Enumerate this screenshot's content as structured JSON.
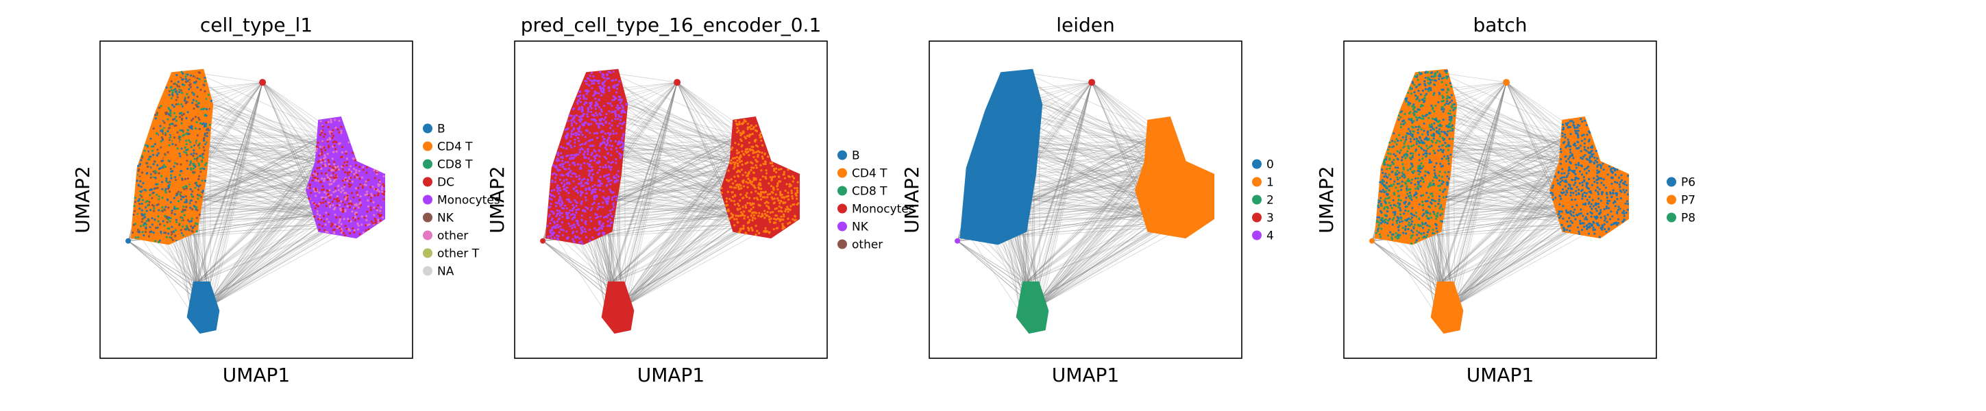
{
  "chart_data": [
    {
      "type": "scatter",
      "title": "cell_type_l1",
      "xlabel": "UMAP1",
      "ylabel": "UMAP2",
      "grid": false,
      "legend": "right",
      "legend_entries": [
        {
          "label": "B",
          "color": "#1f77b4"
        },
        {
          "label": "CD4 T",
          "color": "#ff7f0e"
        },
        {
          "label": "CD8 T",
          "color": "#279e68"
        },
        {
          "label": "DC",
          "color": "#d62728"
        },
        {
          "label": "Monocytes",
          "color": "#aa40fc"
        },
        {
          "label": "NK",
          "color": "#8c564b"
        },
        {
          "label": "other",
          "color": "#e377c2"
        },
        {
          "label": "other T",
          "color": "#b5bd61"
        },
        {
          "label": "NA",
          "color": "#d3d3d3"
        }
      ],
      "clusters": [
        {
          "label": "CD4 T",
          "mix": [
            "#ff7f0e",
            "#279e68",
            "#8c564b",
            "#1f77b4"
          ],
          "region": "left"
        },
        {
          "label": "Monocytes",
          "mix": [
            "#aa40fc",
            "#e377c2",
            "#d62728"
          ],
          "region": "right"
        },
        {
          "label": "B",
          "mix": [
            "#1f77b4"
          ],
          "region": "bottom"
        },
        {
          "label": "DC",
          "mix": [
            "#d62728"
          ],
          "region": "top"
        }
      ]
    },
    {
      "type": "scatter",
      "title": "pred_cell_type_16_encoder_0.1",
      "xlabel": "UMAP1",
      "ylabel": "UMAP2",
      "grid": false,
      "legend": "right",
      "legend_entries": [
        {
          "label": "B",
          "color": "#1f77b4"
        },
        {
          "label": "CD4 T",
          "color": "#ff7f0e"
        },
        {
          "label": "CD8 T",
          "color": "#279e68"
        },
        {
          "label": "Monocytes",
          "color": "#d62728"
        },
        {
          "label": "NK",
          "color": "#aa40fc"
        },
        {
          "label": "other",
          "color": "#8c564b"
        }
      ],
      "clusters": [
        {
          "label": "Monocytes",
          "mix": [
            "#d62728"
          ],
          "region": "all"
        }
      ]
    },
    {
      "type": "scatter",
      "title": "leiden",
      "xlabel": "UMAP1",
      "ylabel": "UMAP2",
      "grid": false,
      "legend": "right",
      "legend_entries": [
        {
          "label": "0",
          "color": "#1f77b4"
        },
        {
          "label": "1",
          "color": "#ff7f0e"
        },
        {
          "label": "2",
          "color": "#279e68"
        },
        {
          "label": "3",
          "color": "#d62728"
        },
        {
          "label": "4",
          "color": "#aa40fc"
        }
      ],
      "clusters": [
        {
          "label": "0",
          "region": "left"
        },
        {
          "label": "1",
          "region": "right"
        },
        {
          "label": "2",
          "region": "bottom"
        },
        {
          "label": "3",
          "region": "top"
        },
        {
          "label": "4",
          "region": "tip"
        }
      ]
    },
    {
      "type": "scatter",
      "title": "batch",
      "xlabel": "UMAP1",
      "ylabel": "UMAP2",
      "grid": false,
      "legend": "right",
      "legend_entries": [
        {
          "label": "P6",
          "color": "#1f77b4"
        },
        {
          "label": "P7",
          "color": "#ff7f0e"
        },
        {
          "label": "P8",
          "color": "#279e68"
        }
      ],
      "clusters": [
        {
          "label": "P7",
          "mix": [
            "#ff7f0e",
            "#1f77b4",
            "#279e68"
          ],
          "region": "all"
        }
      ]
    }
  ],
  "colors": {
    "edges": "#808080",
    "frame": "#000000"
  }
}
